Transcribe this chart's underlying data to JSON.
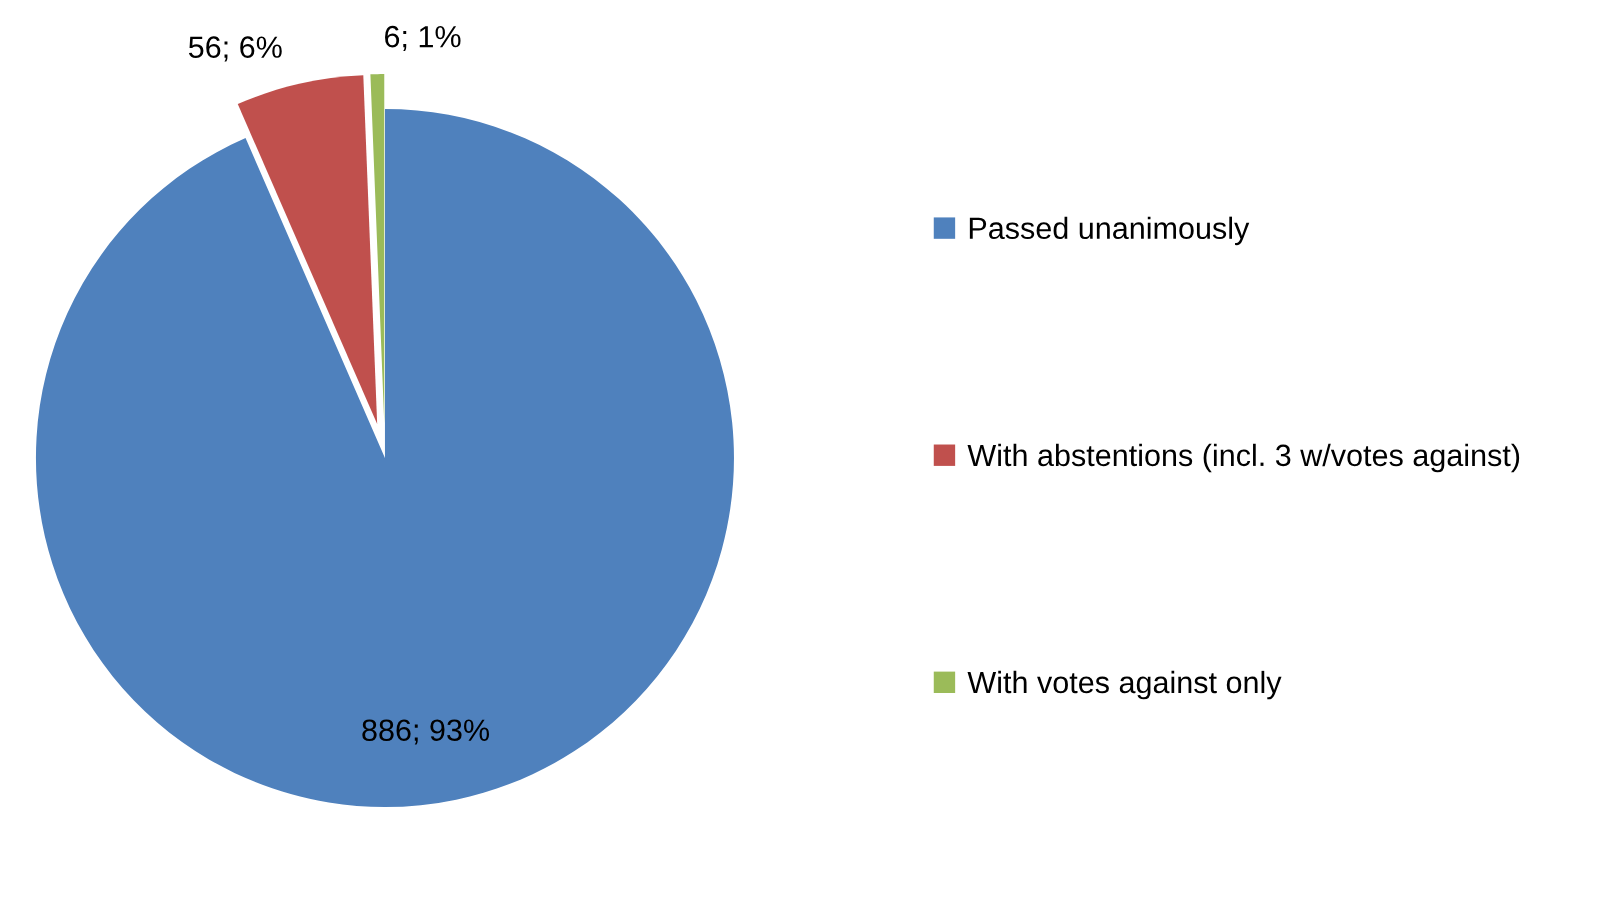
{
  "chart_data": {
    "type": "pie",
    "categories": [
      "Passed unanimously",
      "With abstentions (incl. 3 w/votes against)",
      "With votes against only"
    ],
    "values": [
      886,
      56,
      6
    ],
    "value_labels": [
      "886; 93%",
      "56; 6%",
      "6; 1%"
    ],
    "colors": [
      "#4f81bd",
      "#c0504d",
      "#9bbb59"
    ],
    "legend": "right"
  }
}
